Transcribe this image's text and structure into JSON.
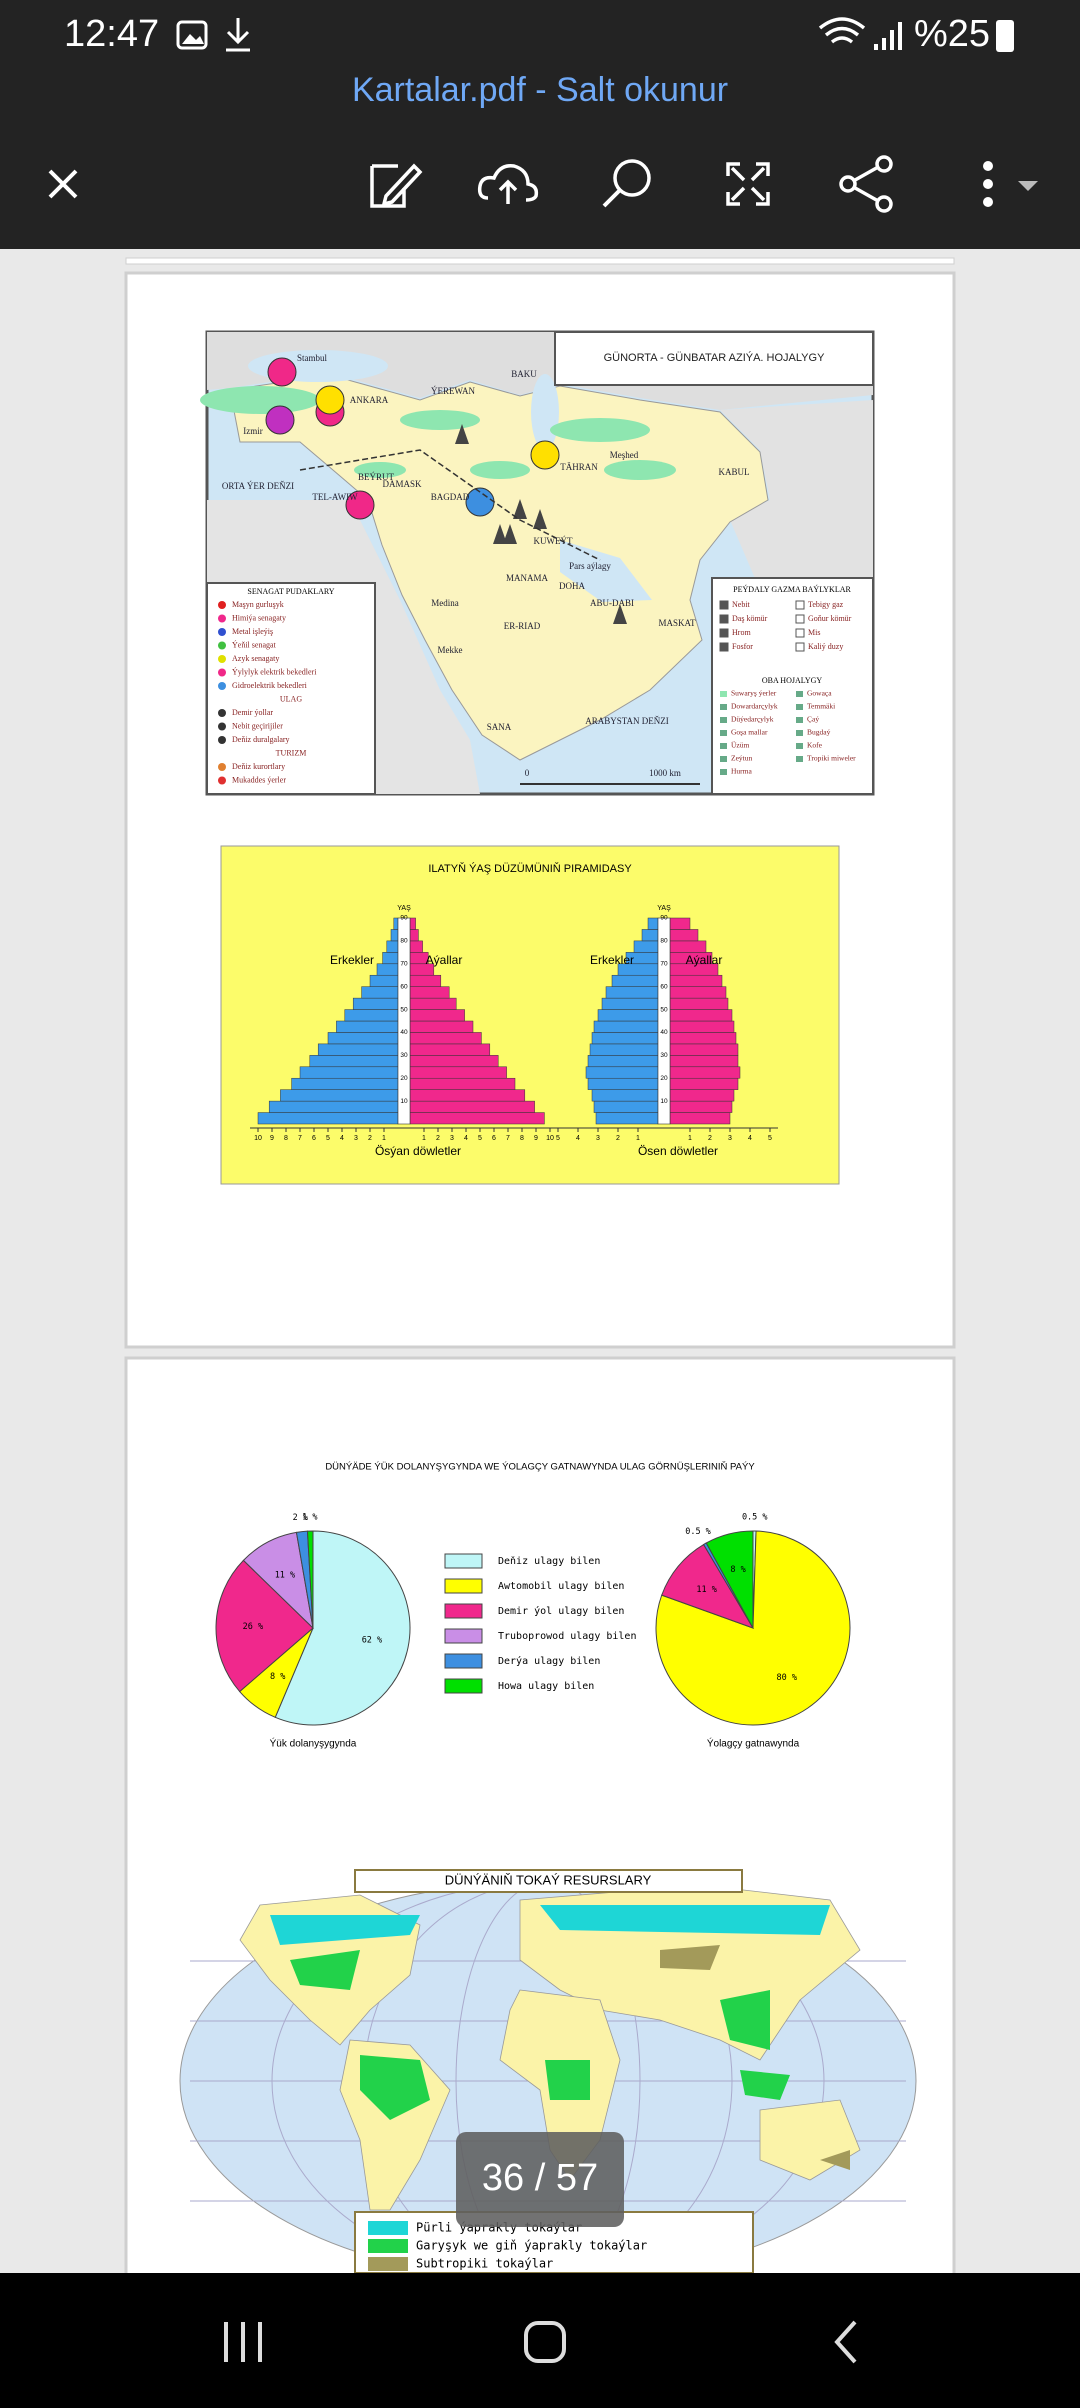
{
  "status_bar": {
    "time": "12:47",
    "battery": "%25"
  },
  "toolbar": {
    "title": "Kartalar.pdf - Salt okunur"
  },
  "page_1": {
    "map": {
      "title": "GÜNORTA - GÜNBATAR AZIÝA. HOJALYGY",
      "places": [
        "Stambul",
        "Izmir",
        "ANKARA",
        "ÝEREWAN",
        "BAKU",
        "TÄHRAN",
        "Meşhed",
        "KABUL",
        "ORTA ÝER DEŇZI",
        "BEÝRUT",
        "DAMASK",
        "TEL-AWIW",
        "BAGDAD",
        "KUWEÝT",
        "Pars aýlagy",
        "MANAMA",
        "DOHA",
        "ABU-DABI",
        "MASKAT",
        "ER-RIAD",
        "Medina",
        "Mekke",
        "SANA",
        "ARABYSTAN DEŇZI",
        "0",
        "1000 km"
      ],
      "industry_legend": {
        "heading": "SENAGAT PUDAKLARY",
        "items": [
          "Maşyn gurluşyk",
          "Himiýa senagaty",
          "Metal işleýiş",
          "Ýeňil senagat",
          "Azyk senagaty",
          "Ýylylyk elektrik bekedleri",
          "Gidroelektrik bekedleri",
          "ULAG",
          "Demir ýollar",
          "Nebit geçirijiler",
          "Deňiz duralgalary",
          "TURIZM",
          "Deňiz kurortlary",
          "Mukaddes ýerler"
        ]
      },
      "resources_legend": {
        "heading": "PEÝDALY GAZMA BAÝLYKLAR",
        "items": [
          "Nebit",
          "Tebigy gaz",
          "Daş kömür",
          "Goňur kömür",
          "Hrom",
          "Mis",
          "Fosfor",
          "Kaliý duzy"
        ],
        "farm_heading": "OBA HOJALYGY",
        "farm_items": [
          "Suwaryş ýerler",
          "Gowaça",
          "Dowardarçylyk",
          "Temmäki",
          "Düýedarçylyk",
          "Çaý",
          "Goşa mallar",
          "Bugdaý",
          "Üzüm",
          "Kofe",
          "Zeýtun",
          "Tropiki miweler",
          "Hurma"
        ]
      }
    }
  },
  "chart_data": [
    {
      "type": "pyramid",
      "title": "ILATYŇ ÝAŞ DÜZÜMÜNIŇ PIRAMIDASY",
      "y_label": "YAŞ",
      "ylim": [
        0,
        90
      ],
      "yticks": [
        10,
        20,
        30,
        40,
        50,
        60,
        70,
        80,
        90
      ],
      "panels": [
        {
          "name": "Ösýan döwletler",
          "xlim": [
            0,
            10
          ],
          "xticks": [
            1,
            2,
            3,
            4,
            5,
            6,
            7,
            8,
            9,
            10
          ],
          "series": [
            {
              "name": "Erkekler",
              "color": "#3d9be9",
              "values": [
                10,
                9.2,
                8.4,
                7.6,
                7,
                6.3,
                5.7,
                5,
                4.4,
                3.8,
                3.2,
                2.6,
                2,
                1.5,
                1.1,
                0.8,
                0.5,
                0.3
              ]
            },
            {
              "name": "Aýallar",
              "color": "#f0288c",
              "values": [
                9.6,
                8.9,
                8.2,
                7.5,
                6.9,
                6.3,
                5.7,
                5.1,
                4.5,
                3.9,
                3.3,
                2.8,
                2.2,
                1.7,
                1.3,
                0.9,
                0.6,
                0.4
              ]
            }
          ]
        },
        {
          "name": "Ösen döwletler",
          "xlim": [
            0,
            5
          ],
          "xticks": [
            1,
            2,
            3,
            4,
            5
          ],
          "series": [
            {
              "name": "Erkekler",
              "color": "#3d9be9",
              "values": [
                3.1,
                3.2,
                3.3,
                3.5,
                3.6,
                3.5,
                3.4,
                3.3,
                3.2,
                3,
                2.8,
                2.6,
                2.3,
                2,
                1.6,
                1.2,
                0.8,
                0.5
              ]
            },
            {
              "name": "Aýallar",
              "color": "#f0288c",
              "values": [
                3,
                3.1,
                3.2,
                3.4,
                3.5,
                3.4,
                3.4,
                3.3,
                3.2,
                3.1,
                2.9,
                2.8,
                2.6,
                2.4,
                2.1,
                1.8,
                1.4,
                1
              ]
            }
          ]
        }
      ]
    },
    {
      "type": "pie",
      "title": "DÜNÝÄDE ÝÜK DOLANYŞYGYNDA WE ÝOLAGÇY GATNAWYNDA ULAG GÖRNÜŞLERINIŇ PAÝY",
      "categories": [
        "Deňiz ulagy bilen",
        "Awtomobil ulagy bilen",
        "Demir ýol ulagy bilen",
        "Truboprowod ulagy bilen",
        "Derýa ulagy bilen",
        "Howa ulagy bilen"
      ],
      "colors": [
        "#bff6f7",
        "#ffff00",
        "#f0288c",
        "#c98ee6",
        "#3d8fe0",
        "#00e000"
      ],
      "series": [
        {
          "name": "Ýük dolanyşygynda",
          "values": [
            62,
            8,
            26,
            11,
            2,
            1
          ],
          "value_labels": [
            "62 %",
            "8 %",
            "26 %",
            "11 %",
            "2 %",
            "1 %"
          ]
        },
        {
          "name": "Ýolagçy gatnawynda",
          "values": [
            0.5,
            80,
            11,
            null,
            0.5,
            8
          ],
          "value_labels": [
            "0.5 %",
            "80 %",
            "11 %",
            null,
            "0.5 %",
            "8 %"
          ]
        }
      ]
    }
  ],
  "page_2": {
    "forest_map": {
      "title": "DÜNÝÄNIŇ TOKAÝ RESURSLARY",
      "legend": [
        {
          "label": "Pürli ýaprakly tokaýlar",
          "color": "#1ed6d6"
        },
        {
          "label": "Garyşyk we giň ýaprakly tokaýlar",
          "color": "#22d24a"
        },
        {
          "label": "Subtropiki tokaýlar",
          "color": "#a39a5a"
        }
      ]
    }
  },
  "page_indicator": "36 / 57"
}
